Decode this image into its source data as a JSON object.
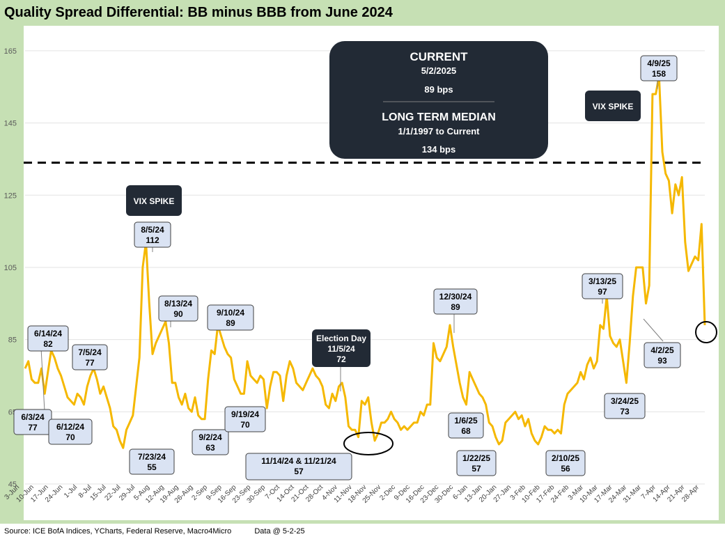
{
  "title": "Quality Spread Differential: BB minus BBB from June 2024",
  "footer": {
    "source": "Source: ICE BofA Indices, YCharts, Federal Reserve, Macro4Micro",
    "data_date": "Data @ 5-2-25"
  },
  "info_box": {
    "current_label": "CURRENT",
    "current_date": "5/2/2025",
    "current_value": "89 bps",
    "median_label": "LONG TERM MEDIAN",
    "median_range": "1/1/1997 to Current",
    "median_value": "134 bps"
  },
  "colors": {
    "line": "#f5b800",
    "frame": "#c6e0b4",
    "dark_box": "#222a35",
    "callout": "#dae3f3"
  },
  "chart_data": {
    "type": "line",
    "title": "Quality Spread Differential: BB minus BBB from June 2024",
    "ylim": [
      45,
      170
    ],
    "yticks": [
      45,
      65,
      85,
      105,
      125,
      145,
      165
    ],
    "grid": "horizontal",
    "median_line": 134,
    "x_tick_labels": [
      "3-Jun",
      "10-Jun",
      "17-Jun",
      "24-Jun",
      "1-Jul",
      "8-Jul",
      "15-Jul",
      "22-Jul",
      "29-Jul",
      "5-Aug",
      "12-Aug",
      "19-Aug",
      "26-Aug",
      "2-Sep",
      "9-Sep",
      "16-Sep",
      "23-Sep",
      "30-Sep",
      "7-Oct",
      "14-Oct",
      "21-Oct",
      "28-Oct",
      "4-Nov",
      "11-Nov",
      "18-Nov",
      "25-Nov",
      "2-Dec",
      "9-Dec",
      "16-Dec",
      "23-Dec",
      "30-Dec",
      "6-Jan",
      "13-Jan",
      "20-Jan",
      "27-Jan",
      "3-Feb",
      "10-Feb",
      "17-Feb",
      "24-Feb",
      "3-Mar",
      "10-Mar",
      "17-Mar",
      "24-Mar",
      "31-Mar",
      "7-Apr",
      "14-Apr",
      "21-Apr",
      "28-Apr"
    ],
    "series": [
      {
        "values": [
          77,
          79,
          74,
          73,
          73,
          77,
          70,
          76,
          82,
          80,
          77,
          75,
          72,
          69,
          68,
          67,
          70,
          69,
          67,
          72,
          75,
          77,
          74,
          70,
          72,
          69,
          66,
          61,
          60,
          57,
          55,
          60,
          62,
          64,
          72,
          80,
          105,
          112,
          95,
          81,
          84,
          86,
          88,
          90,
          84,
          73,
          73,
          69,
          67,
          70,
          66,
          65,
          69,
          64,
          63,
          63,
          74,
          82,
          81,
          89,
          86,
          83,
          81,
          80,
          74,
          72,
          70,
          70,
          79,
          75,
          74,
          73,
          75,
          74,
          66,
          72,
          76,
          76,
          75,
          68,
          75,
          79,
          77,
          73,
          72,
          71,
          73,
          75,
          77,
          75,
          74,
          72,
          67,
          66,
          70,
          68,
          72,
          73,
          69,
          61,
          60,
          60,
          58,
          68,
          67,
          69,
          62,
          57,
          59,
          62,
          62,
          63,
          65,
          63,
          62,
          60,
          61,
          60,
          61,
          62,
          62,
          65,
          64,
          67,
          67,
          84,
          80,
          79,
          81,
          83,
          89,
          83,
          78,
          73,
          69,
          67,
          76,
          74,
          72,
          70,
          69,
          67,
          62,
          61,
          58,
          56,
          57,
          62,
          63,
          64,
          65,
          63,
          64,
          61,
          63,
          59,
          57,
          56,
          58,
          61,
          60,
          60,
          59,
          60,
          59,
          67,
          70,
          71,
          72,
          73,
          76,
          74,
          78,
          80,
          77,
          79,
          89,
          88,
          97,
          86,
          84,
          83,
          85,
          79,
          73,
          84,
          97,
          105,
          105,
          105,
          95,
          100,
          153,
          153,
          158,
          137,
          131,
          129,
          120,
          128,
          125,
          130,
          112,
          104,
          106,
          108,
          107,
          117,
          89
        ]
      }
    ],
    "annotations": [
      {
        "date": "6/3/24",
        "value": 77
      },
      {
        "date": "6/12/24",
        "value": 70
      },
      {
        "date": "6/14/24",
        "value": 82
      },
      {
        "date": "7/5/24",
        "value": 77
      },
      {
        "date": "7/23/24",
        "value": 55
      },
      {
        "date": "8/5/24",
        "value": 112
      },
      {
        "date": "8/13/24",
        "value": 90
      },
      {
        "date": "9/2/24",
        "value": 63
      },
      {
        "date": "9/10/24",
        "value": 89
      },
      {
        "date": "9/19/24",
        "value": 70
      },
      {
        "date": "11/14/24 & 11/21/24",
        "value": 57
      },
      {
        "date": "12/30/24",
        "value": 89
      },
      {
        "date": "1/6/25",
        "value": 68
      },
      {
        "date": "1/22/25",
        "value": 57
      },
      {
        "date": "2/10/25",
        "value": 56
      },
      {
        "date": "3/13/25",
        "value": 97
      },
      {
        "date": "3/24/25",
        "value": 73
      },
      {
        "date": "4/2/25",
        "value": 93
      },
      {
        "date": "4/9/25",
        "value": 158
      }
    ],
    "event_labels": {
      "election_title": "Election Day",
      "election_date": "11/5/24",
      "election_value": "72",
      "vix_spike": "VIX SPIKE"
    }
  }
}
